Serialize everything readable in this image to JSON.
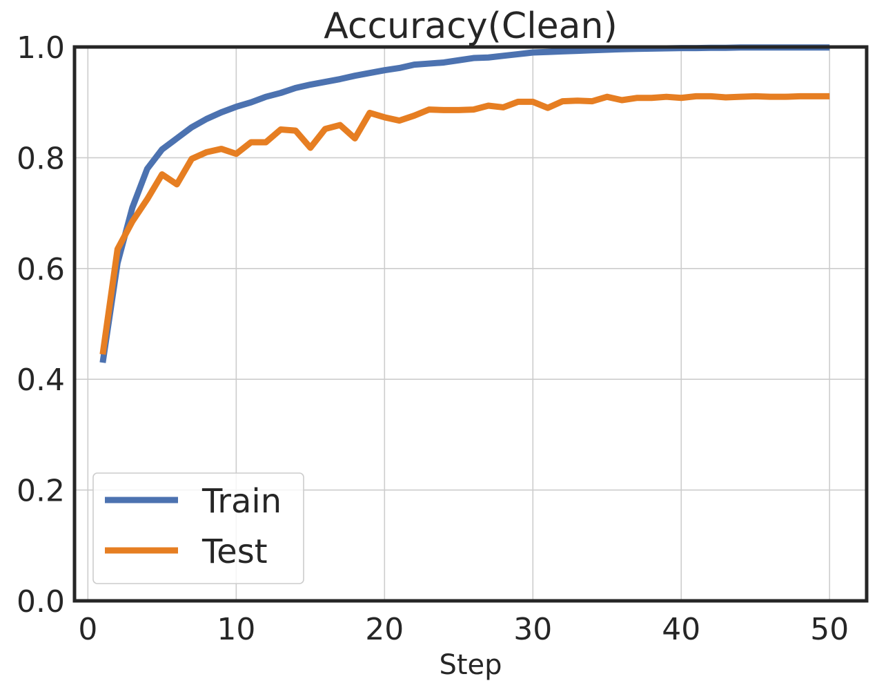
{
  "chart_data": {
    "type": "line",
    "title": "Accuracy(Clean)",
    "xlabel": "Step",
    "ylabel": "",
    "xlim": [
      -0.9,
      52.5
    ],
    "ylim": [
      0.0,
      1.0
    ],
    "xticks": [
      0,
      10,
      20,
      30,
      40,
      50
    ],
    "yticks": [
      0.0,
      0.2,
      0.4,
      0.6,
      0.8,
      1.0
    ],
    "xtick_labels": [
      "0",
      "10",
      "20",
      "30",
      "40",
      "50"
    ],
    "ytick_labels": [
      "0.0",
      "0.2",
      "0.4",
      "0.6",
      "0.8",
      "1.0"
    ],
    "grid": true,
    "legend_position": "lower-left",
    "x": [
      1,
      2,
      3,
      4,
      5,
      6,
      7,
      8,
      9,
      10,
      11,
      12,
      13,
      14,
      15,
      16,
      17,
      18,
      19,
      20,
      21,
      22,
      23,
      24,
      25,
      26,
      27,
      28,
      29,
      30,
      31,
      32,
      33,
      34,
      35,
      36,
      37,
      38,
      39,
      40,
      41,
      42,
      43,
      44,
      45,
      46,
      47,
      48,
      49,
      50
    ],
    "series": [
      {
        "name": "Train",
        "color": "#4c72b0",
        "values": [
          0.43,
          0.61,
          0.71,
          0.78,
          0.815,
          0.835,
          0.855,
          0.87,
          0.882,
          0.892,
          0.9,
          0.91,
          0.917,
          0.926,
          0.932,
          0.937,
          0.942,
          0.948,
          0.953,
          0.958,
          0.962,
          0.968,
          0.97,
          0.972,
          0.976,
          0.98,
          0.981,
          0.984,
          0.987,
          0.99,
          0.991,
          0.992,
          0.993,
          0.994,
          0.995,
          0.996,
          0.9965,
          0.997,
          0.9975,
          0.998,
          0.998,
          0.9985,
          0.9985,
          0.999,
          0.999,
          0.999,
          0.999,
          0.999,
          0.999,
          0.999
        ]
      },
      {
        "name": "Test",
        "color": "#e67e22",
        "values": [
          0.445,
          0.635,
          0.685,
          0.725,
          0.77,
          0.752,
          0.798,
          0.81,
          0.816,
          0.807,
          0.828,
          0.828,
          0.851,
          0.849,
          0.818,
          0.852,
          0.859,
          0.835,
          0.881,
          0.873,
          0.867,
          0.876,
          0.887,
          0.886,
          0.886,
          0.887,
          0.894,
          0.891,
          0.901,
          0.901,
          0.89,
          0.902,
          0.903,
          0.902,
          0.91,
          0.904,
          0.908,
          0.908,
          0.91,
          0.908,
          0.911,
          0.911,
          0.909,
          0.91,
          0.911,
          0.91,
          0.91,
          0.911,
          0.911,
          0.911
        ]
      }
    ]
  }
}
